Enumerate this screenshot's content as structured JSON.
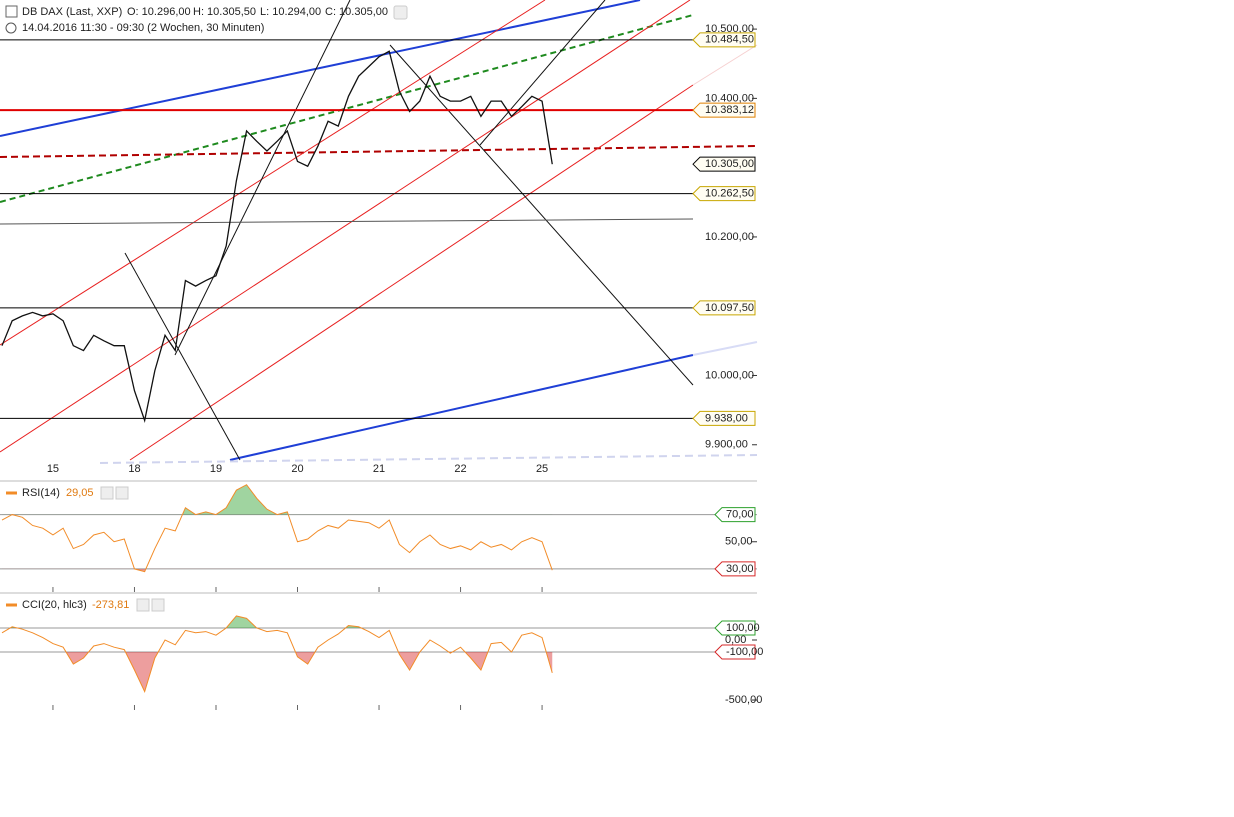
{
  "header": {
    "title": "DB DAX (Last, XXP)",
    "open": "O: 10.296,00",
    "high": "H: 10.305,50",
    "low": "L: 10.294,00",
    "close": "C: 10.305,00",
    "period": "14.04.2016 11:30 - 09:30 (2 Wochen, 30 Minuten)"
  },
  "chart_data": [
    {
      "type": "line",
      "categories": [
        null,
        null,
        null,
        null,
        null,
        "15",
        null,
        null,
        null,
        null,
        null,
        null,
        null,
        "18",
        null,
        null,
        null,
        null,
        null,
        null,
        null,
        "19",
        null,
        null,
        null,
        null,
        null,
        null,
        null,
        "20",
        null,
        null,
        null,
        null,
        null,
        null,
        null,
        "21",
        null,
        null,
        null,
        null,
        null,
        null,
        null,
        "22",
        null,
        null,
        null,
        null,
        null,
        null,
        null,
        "25",
        null
      ],
      "values": [
        10043,
        10079,
        10086,
        10091,
        10086,
        10089,
        10079,
        10043,
        10036,
        10058,
        10050,
        10043,
        10043,
        9978,
        9935,
        10007,
        10058,
        10036,
        10137,
        10129,
        10137,
        10144,
        10187,
        10281,
        10353,
        10338,
        10324,
        10338,
        10353,
        10309,
        10302,
        10331,
        10367,
        10360,
        10403,
        10432,
        10446,
        10460,
        10468,
        10410,
        10381,
        10396,
        10432,
        10403,
        10396,
        10396,
        10403,
        10374,
        10396,
        10396,
        10374,
        10388,
        10403,
        10396,
        10305
      ],
      "color": "#111111",
      "ylim": [
        9878,
        10542
      ],
      "yticks": [
        {
          "value": 9900,
          "label": "9.900,00"
        },
        {
          "value": 10000,
          "label": "10.000,00"
        },
        {
          "value": 10200,
          "label": "10.200,00"
        },
        {
          "value": 10400,
          "label": "10.400,00"
        },
        {
          "value": 10500,
          "label": "10.500,00"
        }
      ],
      "levels": [
        {
          "value": 10484.5,
          "label": "10.484,50",
          "color": "#000000",
          "border": "#c8a600",
          "line": true
        },
        {
          "value": 10383.12,
          "label": "10.383,12",
          "color": "#e00000",
          "border": "#e08000",
          "line": true
        },
        {
          "value": 10305,
          "label": "10.305,00",
          "color": "#000000",
          "border": "#000000",
          "line": false
        },
        {
          "value": 10262.5,
          "label": "10.262,50",
          "color": "#000000",
          "border": "#c8a600",
          "line": true
        },
        {
          "value": 10097.5,
          "label": "10.097,50",
          "color": "#000000",
          "border": "#c8a600",
          "line": true
        },
        {
          "value": 9938,
          "label": "9.938,00",
          "color": "#000000",
          "border": "#c8a600",
          "line": true
        }
      ]
    },
    {
      "type": "line",
      "title": "RSI(14)",
      "current": "29,05",
      "values": [
        66,
        70,
        68,
        62,
        60,
        55,
        60,
        45,
        48,
        55,
        57,
        50,
        52,
        30,
        28,
        45,
        60,
        58,
        75,
        70,
        72,
        70,
        75,
        88,
        92,
        82,
        74,
        70,
        72,
        50,
        52,
        58,
        62,
        60,
        66,
        65,
        64,
        60,
        66,
        48,
        42,
        50,
        55,
        48,
        45,
        47,
        44,
        50,
        46,
        48,
        44,
        50,
        53,
        50,
        29.05
      ],
      "color": "#f28c28",
      "ylim": [
        13,
        94
      ],
      "yticks": [
        {
          "value": 70,
          "label": "70,00",
          "zone": "above",
          "color": "#2ca02c"
        },
        {
          "value": 50,
          "label": "50,00"
        },
        {
          "value": 30,
          "label": "30,00",
          "zone": "below",
          "color": "#d62728"
        }
      ]
    },
    {
      "type": "line",
      "title": "CCI(20, hlc3)",
      "current": "-273,81",
      "values": [
        60,
        110,
        90,
        60,
        20,
        -30,
        -60,
        -200,
        -150,
        -50,
        -30,
        -60,
        -80,
        -250,
        -430,
        -150,
        0,
        -40,
        80,
        60,
        70,
        40,
        100,
        200,
        180,
        100,
        70,
        80,
        60,
        -140,
        -200,
        -60,
        0,
        50,
        120,
        110,
        70,
        20,
        80,
        -120,
        -250,
        -100,
        0,
        -50,
        -110,
        -60,
        -150,
        -250,
        -30,
        -20,
        -100,
        40,
        60,
        20,
        -273.81
      ],
      "color": "#f28c28",
      "ylim": [
        -583,
        383
      ],
      "yticks": [
        {
          "value": 100,
          "label": "100,00",
          "zone": "above",
          "color": "#2ca02c"
        },
        {
          "value": 0,
          "label": "0,00"
        },
        {
          "value": -100,
          "label": "-100,00",
          "zone": "below",
          "color": "#d62728"
        },
        {
          "value": -500,
          "label": "-500,00"
        }
      ]
    }
  ]
}
